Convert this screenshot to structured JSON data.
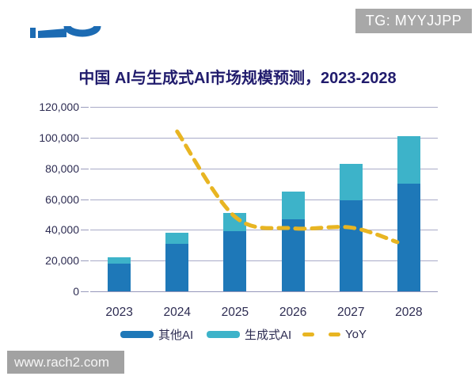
{
  "overlays": {
    "tg_badge": "TG: MYYJJPP",
    "watermark": "www.rach2.com"
  },
  "logo": {
    "description": "partially cropped blue vendor logo at top-left",
    "color": "#1c6bb3"
  },
  "chart_data": {
    "type": "bar",
    "subtype": "stacked-bars-with-dashed-line",
    "title": "中国 AI与生成式AI市场规模预测，2023-2028",
    "categories": [
      "2023",
      "2024",
      "2025",
      "2026",
      "2027",
      "2028"
    ],
    "series": [
      {
        "name": "其他AI",
        "type": "bar",
        "stack": true,
        "color": "#1e78b8",
        "values": [
          18000,
          31000,
          39000,
          47000,
          59000,
          70000
        ]
      },
      {
        "name": "生成式AI",
        "type": "bar",
        "stack": true,
        "color": "#3db3c9",
        "values": [
          4000,
          7000,
          12000,
          18000,
          24000,
          31000
        ]
      },
      {
        "name": "YoY",
        "type": "line",
        "style": "dashed",
        "color": "#e8b522",
        "left_axis_readings": [
          null,
          104000,
          48500,
          41000,
          41500,
          32000
        ],
        "note": "dashed line plotted against an unlabeled secondary axis; values above are estimated readings against the left axis gridlines"
      }
    ],
    "stacked_totals": [
      22000,
      38000,
      51000,
      65000,
      83000,
      101000
    ],
    "ylim": [
      0,
      120000
    ],
    "ytick_step": 20000,
    "yticks": [
      "0",
      "20,000",
      "40,000",
      "60,000",
      "80,000",
      "100,000",
      "120,000"
    ],
    "xlabel": "",
    "ylabel": "",
    "grid": true,
    "legend_position": "bottom",
    "legend": [
      "其他AI",
      "生成式AI",
      "YoY"
    ],
    "yoy_line_ends_at_last_bar_left_edge": true
  },
  "colors": {
    "background": "#ffffff",
    "title_text": "#211c6d",
    "axis_text": "#2d2c52",
    "gridline": "#a9abc8",
    "badge_bg": "#a8a8a8",
    "badge_text": "#ffffff",
    "watermark_bg": "#a2a2a2",
    "watermark_text": "#f5f5f5"
  }
}
